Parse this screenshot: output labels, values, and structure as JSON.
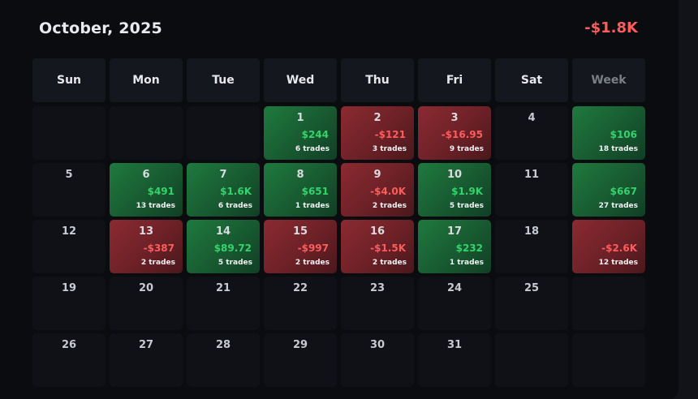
{
  "header": {
    "title": "October, 2025",
    "total": "-$1.8K"
  },
  "colors": {
    "positive": "#34d36b",
    "negative": "#ff5c5c",
    "background": "#0b0c0f"
  },
  "weekdays": [
    "Sun",
    "Mon",
    "Tue",
    "Wed",
    "Thu",
    "Fri",
    "Sat",
    "Week"
  ],
  "weeks": [
    [
      {
        "day": "",
        "pnl": "",
        "trades": "",
        "tone": ""
      },
      {
        "day": "",
        "pnl": "",
        "trades": "",
        "tone": ""
      },
      {
        "day": "",
        "pnl": "",
        "trades": "",
        "tone": ""
      },
      {
        "day": "1",
        "pnl": "$244",
        "trades": "6 trades",
        "tone": "pos"
      },
      {
        "day": "2",
        "pnl": "-$121",
        "trades": "3 trades",
        "tone": "neg"
      },
      {
        "day": "3",
        "pnl": "-$16.95",
        "trades": "9 trades",
        "tone": "neg"
      },
      {
        "day": "4",
        "pnl": "",
        "trades": "",
        "tone": ""
      },
      {
        "day": "",
        "pnl": "$106",
        "trades": "18 trades",
        "tone": "pos"
      }
    ],
    [
      {
        "day": "5",
        "pnl": "",
        "trades": "",
        "tone": ""
      },
      {
        "day": "6",
        "pnl": "$491",
        "trades": "13 trades",
        "tone": "pos"
      },
      {
        "day": "7",
        "pnl": "$1.6K",
        "trades": "6 trades",
        "tone": "pos"
      },
      {
        "day": "8",
        "pnl": "$651",
        "trades": "1 trades",
        "tone": "pos"
      },
      {
        "day": "9",
        "pnl": "-$4.0K",
        "trades": "2 trades",
        "tone": "neg"
      },
      {
        "day": "10",
        "pnl": "$1.9K",
        "trades": "5 trades",
        "tone": "pos"
      },
      {
        "day": "11",
        "pnl": "",
        "trades": "",
        "tone": ""
      },
      {
        "day": "",
        "pnl": "$667",
        "trades": "27 trades",
        "tone": "pos"
      }
    ],
    [
      {
        "day": "12",
        "pnl": "",
        "trades": "",
        "tone": ""
      },
      {
        "day": "13",
        "pnl": "-$387",
        "trades": "2 trades",
        "tone": "neg"
      },
      {
        "day": "14",
        "pnl": "$89.72",
        "trades": "5 trades",
        "tone": "pos"
      },
      {
        "day": "15",
        "pnl": "-$997",
        "trades": "2 trades",
        "tone": "neg"
      },
      {
        "day": "16",
        "pnl": "-$1.5K",
        "trades": "2 trades",
        "tone": "neg"
      },
      {
        "day": "17",
        "pnl": "$232",
        "trades": "1 trades",
        "tone": "pos"
      },
      {
        "day": "18",
        "pnl": "",
        "trades": "",
        "tone": ""
      },
      {
        "day": "",
        "pnl": "-$2.6K",
        "trades": "12 trades",
        "tone": "neg"
      }
    ],
    [
      {
        "day": "19",
        "pnl": "",
        "trades": "",
        "tone": ""
      },
      {
        "day": "20",
        "pnl": "",
        "trades": "",
        "tone": ""
      },
      {
        "day": "21",
        "pnl": "",
        "trades": "",
        "tone": ""
      },
      {
        "day": "22",
        "pnl": "",
        "trades": "",
        "tone": ""
      },
      {
        "day": "23",
        "pnl": "",
        "trades": "",
        "tone": ""
      },
      {
        "day": "24",
        "pnl": "",
        "trades": "",
        "tone": ""
      },
      {
        "day": "25",
        "pnl": "",
        "trades": "",
        "tone": ""
      },
      {
        "day": "",
        "pnl": "",
        "trades": "",
        "tone": ""
      }
    ],
    [
      {
        "day": "26",
        "pnl": "",
        "trades": "",
        "tone": ""
      },
      {
        "day": "27",
        "pnl": "",
        "trades": "",
        "tone": ""
      },
      {
        "day": "28",
        "pnl": "",
        "trades": "",
        "tone": ""
      },
      {
        "day": "29",
        "pnl": "",
        "trades": "",
        "tone": ""
      },
      {
        "day": "30",
        "pnl": "",
        "trades": "",
        "tone": ""
      },
      {
        "day": "31",
        "pnl": "",
        "trades": "",
        "tone": ""
      },
      {
        "day": "",
        "pnl": "",
        "trades": "",
        "tone": ""
      },
      {
        "day": "",
        "pnl": "",
        "trades": "",
        "tone": ""
      }
    ]
  ]
}
